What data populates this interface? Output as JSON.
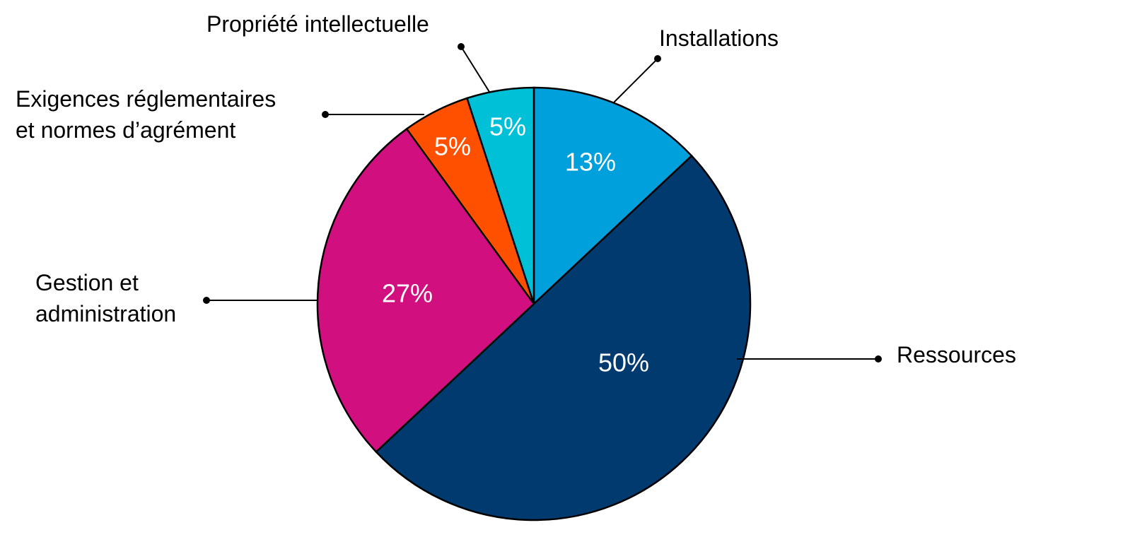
{
  "chart_data": {
    "type": "pie",
    "categories": [
      "Installations",
      "Ressources",
      "Gestion et\nadministration",
      "Exigences réglementaires\net normes d’agrément",
      "Propriété intellectuelle"
    ],
    "values": [
      13,
      50,
      27,
      5,
      5
    ],
    "value_labels": [
      "13%",
      "50%",
      "27%",
      "5%",
      "5%"
    ],
    "colors": [
      "#00a0dc",
      "#003a6e",
      "#d10f7f",
      "#ff5000",
      "#00c0d8"
    ]
  }
}
